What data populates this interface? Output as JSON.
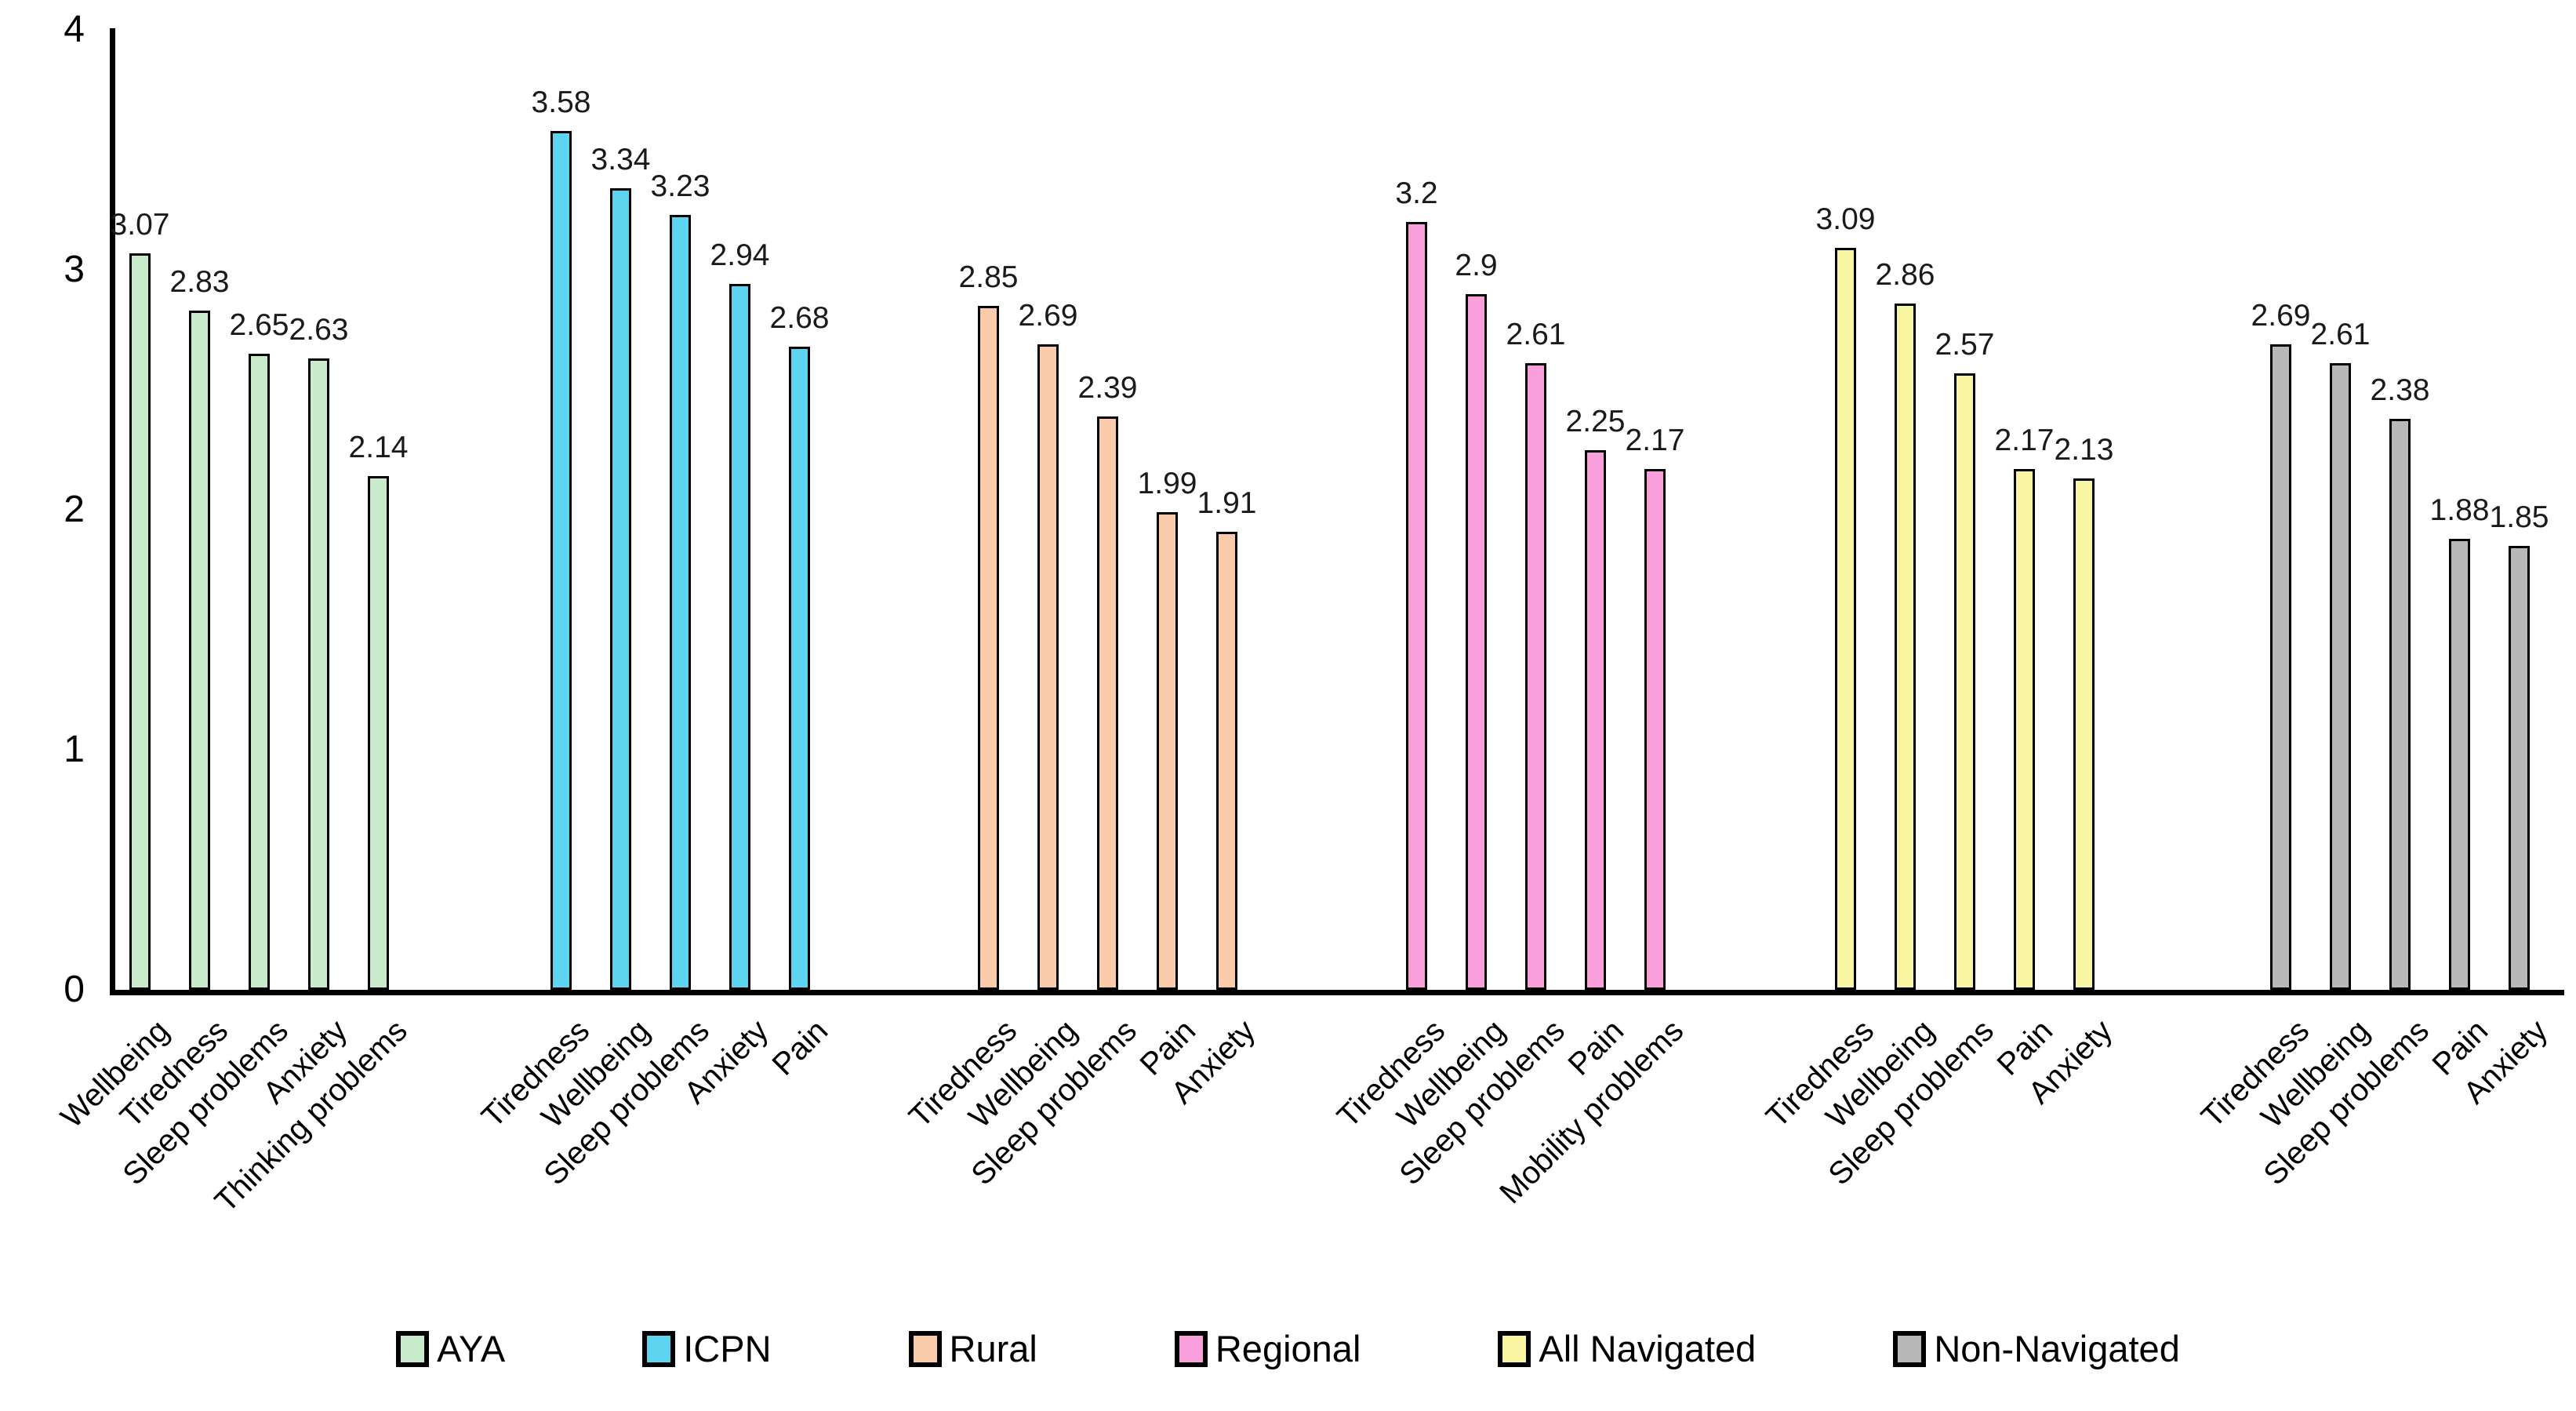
{
  "chart_data": {
    "type": "bar",
    "title": "",
    "xlabel": "",
    "ylabel": "",
    "ylim": [
      0,
      4
    ],
    "y_ticks": [
      "0",
      "1",
      "2",
      "3",
      "4"
    ],
    "grid": false,
    "legend_position": "bottom",
    "bar_outline_color": "#000000",
    "groups": [
      {
        "name": "AYA",
        "color": "#C9EACB",
        "categories": [
          "Wellbeing",
          "Tiredness",
          "Sleep problems",
          "Anxiety",
          "Thinking problems"
        ],
        "values": [
          3.07,
          2.83,
          2.65,
          2.63,
          2.14
        ],
        "value_labels": [
          "3.07",
          "2.83",
          "2.65",
          "2.63",
          "2.14"
        ]
      },
      {
        "name": "ICPN",
        "color": "#5ED5F0",
        "categories": [
          "Tiredness",
          "Wellbeing",
          "Sleep problems",
          "Anxiety",
          "Pain"
        ],
        "values": [
          3.58,
          3.34,
          3.23,
          2.94,
          2.68
        ],
        "value_labels": [
          "3.58",
          "3.34",
          "3.23",
          "2.94",
          "2.68"
        ]
      },
      {
        "name": "Rural",
        "color": "#F9CBAA",
        "categories": [
          "Tiredness",
          "Wellbeing",
          "Sleep problems",
          "Pain",
          "Anxiety"
        ],
        "values": [
          2.85,
          2.69,
          2.39,
          1.99,
          1.91
        ],
        "value_labels": [
          "2.85",
          "2.69",
          "2.39",
          "1.99",
          "1.91"
        ]
      },
      {
        "name": "Regional",
        "color": "#F9A0DC",
        "categories": [
          "Tiredness",
          "Wellbeing",
          "Sleep problems",
          "Pain",
          "Mobility problems"
        ],
        "values": [
          3.2,
          2.9,
          2.61,
          2.25,
          2.17
        ],
        "value_labels": [
          "3.2",
          "2.9",
          "2.61",
          "2.25",
          "2.17"
        ]
      },
      {
        "name": "All Navigated",
        "color": "#F8F6A2",
        "categories": [
          "Tiredness",
          "Wellbeing",
          "Sleep problems",
          "Pain",
          "Anxiety"
        ],
        "values": [
          3.09,
          2.86,
          2.57,
          2.17,
          2.13
        ],
        "value_labels": [
          "3.09",
          "2.86",
          "2.57",
          "2.17",
          "2.13"
        ]
      },
      {
        "name": "Non-Navigated",
        "color": "#B8B8B8",
        "categories": [
          "Tiredness",
          "Wellbeing",
          "Sleep problems",
          "Pain",
          "Anxiety"
        ],
        "values": [
          2.69,
          2.61,
          2.38,
          1.88,
          1.85
        ],
        "value_labels": [
          "2.69",
          "2.61",
          "2.38",
          "1.88",
          "1.85"
        ]
      }
    ]
  }
}
